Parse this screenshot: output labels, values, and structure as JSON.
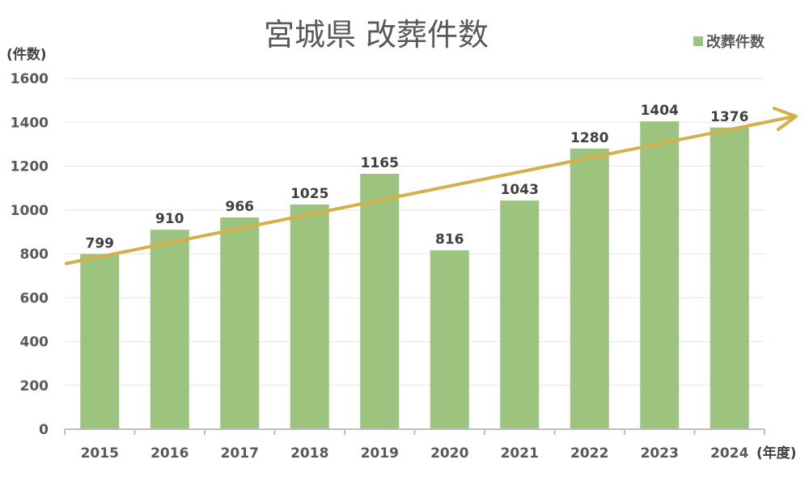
{
  "chart_data": {
    "type": "bar",
    "title": "宮城県 改葬件数",
    "ylabel": "(件数)",
    "xlabel": "(年度)",
    "categories": [
      "2015",
      "2016",
      "2017",
      "2018",
      "2019",
      "2020",
      "2021",
      "2022",
      "2023",
      "2024"
    ],
    "series": [
      {
        "name": "改葬件数",
        "values": [
          799,
          910,
          966,
          1025,
          1165,
          816,
          1043,
          1280,
          1404,
          1376
        ],
        "color": "#9dc47e"
      }
    ],
    "ylim": [
      0,
      1600
    ],
    "yticks": [
      0,
      200,
      400,
      600,
      800,
      1000,
      1200,
      1400,
      1600
    ],
    "grid": true,
    "legend": "top-right",
    "data_labels": true,
    "trend_arrow": {
      "color": "#d4b04a",
      "direction": "upward"
    }
  }
}
